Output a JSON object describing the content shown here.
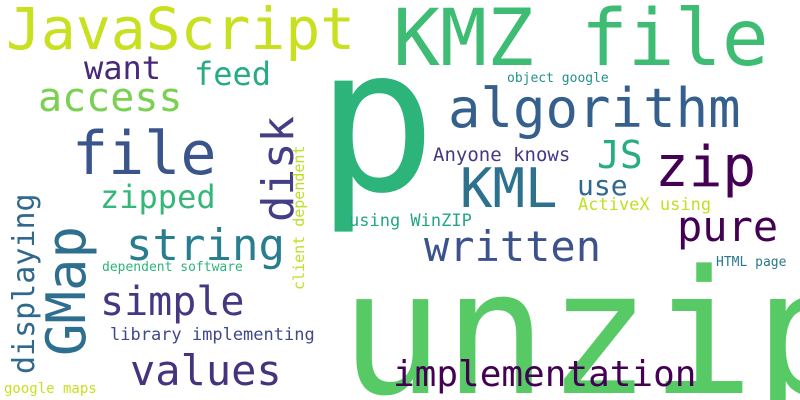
{
  "word_cloud": {
    "words": {
      "unzip": "unzip",
      "p": "p",
      "kmz_file": "KMZ file",
      "javascript": "JavaScript",
      "algorithm": "algorithm",
      "zip": "zip",
      "kml": "KML",
      "file": "file",
      "access": "access",
      "want": "want",
      "feed": "feed",
      "zipped": "zipped",
      "string": "string",
      "simple": "simple",
      "values": "values",
      "written": "written",
      "pure": "pure",
      "use": "use",
      "js": "JS",
      "implementation": "implementation",
      "anyone_knows": "Anyone knows",
      "using_winzip": "using WinZIP",
      "activex_using": "ActiveX using",
      "object_google": "object google",
      "library_implementing": "library implementing",
      "dependent_software": "dependent software",
      "html_page": "HTML page",
      "google_maps": "google maps",
      "gmap": "GMap",
      "displaying": "displaying",
      "disk": "disk",
      "client_dependent": "client dependent"
    }
  }
}
